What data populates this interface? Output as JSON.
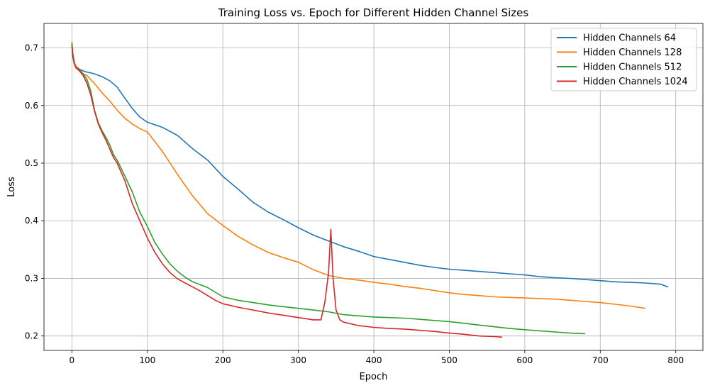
{
  "chart_data": {
    "type": "line",
    "title": "Training Loss vs. Epoch for Different Hidden Channel Sizes",
    "xlabel": "Epoch",
    "ylabel": "Loss",
    "xlim": [
      -37,
      836
    ],
    "ylim": [
      0.175,
      0.7425
    ],
    "xticks": [
      0,
      100,
      200,
      300,
      400,
      500,
      600,
      700,
      800
    ],
    "yticks": [
      0.2,
      0.3,
      0.4,
      0.5,
      0.6,
      0.7
    ],
    "ytick_labels": [
      "0.2",
      "0.3",
      "0.4",
      "0.5",
      "0.6",
      "0.7"
    ],
    "grid": true,
    "legend_position": "top-right",
    "series": [
      {
        "name": "Hidden Channels 64",
        "color": "#1f77b4",
        "x": [
          0,
          1,
          3,
          5,
          10,
          15,
          20,
          30,
          40,
          50,
          60,
          70,
          80,
          90,
          100,
          120,
          140,
          160,
          180,
          200,
          220,
          240,
          260,
          280,
          300,
          320,
          340,
          360,
          380,
          400,
          420,
          440,
          460,
          480,
          500,
          520,
          540,
          560,
          580,
          600,
          620,
          640,
          660,
          680,
          700,
          720,
          740,
          760,
          780,
          790
        ],
        "y": [
          0.705,
          0.685,
          0.672,
          0.668,
          0.663,
          0.66,
          0.658,
          0.655,
          0.65,
          0.643,
          0.632,
          0.613,
          0.595,
          0.58,
          0.571,
          0.562,
          0.548,
          0.525,
          0.505,
          0.477,
          0.455,
          0.432,
          0.415,
          0.402,
          0.388,
          0.375,
          0.365,
          0.355,
          0.347,
          0.338,
          0.333,
          0.328,
          0.323,
          0.319,
          0.316,
          0.314,
          0.312,
          0.31,
          0.308,
          0.306,
          0.303,
          0.301,
          0.3,
          0.298,
          0.296,
          0.294,
          0.293,
          0.292,
          0.29,
          0.285
        ]
      },
      {
        "name": "Hidden Channels 128",
        "color": "#ff7f0e",
        "x": [
          0,
          1,
          3,
          5,
          10,
          15,
          20,
          30,
          40,
          50,
          60,
          70,
          80,
          90,
          100,
          120,
          140,
          160,
          180,
          200,
          220,
          240,
          260,
          280,
          300,
          320,
          340,
          360,
          380,
          400,
          420,
          440,
          460,
          480,
          500,
          520,
          540,
          560,
          580,
          600,
          620,
          640,
          660,
          680,
          700,
          720,
          740,
          760
        ],
        "y": [
          0.71,
          0.69,
          0.672,
          0.665,
          0.66,
          0.655,
          0.652,
          0.638,
          0.622,
          0.608,
          0.592,
          0.578,
          0.568,
          0.56,
          0.554,
          0.52,
          0.48,
          0.443,
          0.412,
          0.392,
          0.373,
          0.358,
          0.345,
          0.336,
          0.328,
          0.315,
          0.305,
          0.3,
          0.297,
          0.293,
          0.29,
          0.286,
          0.283,
          0.279,
          0.275,
          0.272,
          0.27,
          0.268,
          0.267,
          0.266,
          0.265,
          0.264,
          0.262,
          0.26,
          0.258,
          0.255,
          0.252,
          0.248
        ]
      },
      {
        "name": "Hidden Channels 512",
        "color": "#2ca02c",
        "x": [
          0,
          1,
          3,
          5,
          10,
          15,
          20,
          25,
          30,
          35,
          40,
          45,
          50,
          55,
          60,
          70,
          80,
          90,
          100,
          110,
          120,
          130,
          140,
          150,
          160,
          170,
          180,
          190,
          200,
          220,
          240,
          260,
          280,
          300,
          320,
          340,
          360,
          380,
          400,
          420,
          440,
          460,
          480,
          500,
          520,
          540,
          560,
          580,
          600,
          620,
          640,
          660,
          680
        ],
        "y": [
          0.71,
          0.688,
          0.675,
          0.668,
          0.662,
          0.655,
          0.645,
          0.625,
          0.592,
          0.57,
          0.556,
          0.545,
          0.532,
          0.515,
          0.505,
          0.478,
          0.45,
          0.415,
          0.39,
          0.362,
          0.342,
          0.325,
          0.312,
          0.302,
          0.294,
          0.289,
          0.284,
          0.276,
          0.268,
          0.262,
          0.258,
          0.254,
          0.251,
          0.248,
          0.245,
          0.242,
          0.237,
          0.235,
          0.233,
          0.232,
          0.231,
          0.229,
          0.227,
          0.225,
          0.222,
          0.219,
          0.216,
          0.213,
          0.211,
          0.209,
          0.207,
          0.205,
          0.204
        ]
      },
      {
        "name": "Hidden Channels 1024",
        "color": "#d62728",
        "x": [
          0,
          1,
          3,
          5,
          10,
          15,
          20,
          25,
          30,
          35,
          40,
          45,
          50,
          55,
          60,
          70,
          80,
          90,
          100,
          110,
          120,
          130,
          140,
          150,
          160,
          170,
          180,
          190,
          200,
          220,
          240,
          260,
          280,
          300,
          320,
          330,
          335,
          340,
          343,
          346,
          350,
          355,
          360,
          380,
          400,
          420,
          440,
          460,
          480,
          500,
          520,
          540,
          560,
          570
        ],
        "y": [
          0.705,
          0.692,
          0.675,
          0.668,
          0.66,
          0.652,
          0.638,
          0.618,
          0.59,
          0.568,
          0.553,
          0.54,
          0.525,
          0.51,
          0.5,
          0.47,
          0.43,
          0.4,
          0.37,
          0.345,
          0.325,
          0.31,
          0.299,
          0.292,
          0.285,
          0.278,
          0.27,
          0.262,
          0.256,
          0.25,
          0.245,
          0.24,
          0.236,
          0.232,
          0.228,
          0.228,
          0.258,
          0.31,
          0.385,
          0.3,
          0.245,
          0.228,
          0.224,
          0.218,
          0.215,
          0.213,
          0.212,
          0.21,
          0.208,
          0.205,
          0.203,
          0.2,
          0.199,
          0.198
        ]
      }
    ]
  }
}
